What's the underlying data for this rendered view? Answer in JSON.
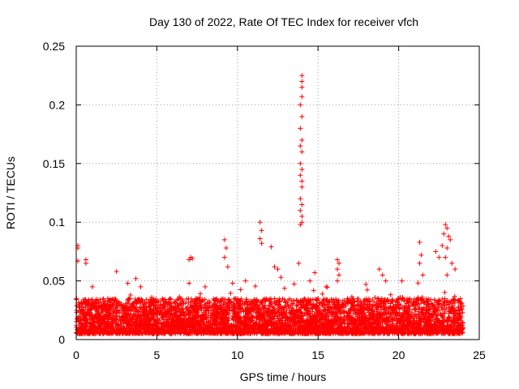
{
  "chart_data": {
    "type": "scatter",
    "title": "Day 130 of 2022, Rate Of TEC Index for receiver vfch",
    "xlabel": "GPS time / hours",
    "ylabel": "ROTI / TECUs",
    "xlim": [
      0,
      25
    ],
    "ylim": [
      0,
      0.25
    ],
    "grid": true,
    "marker": "+",
    "colors": {
      "marker": "#ff0000",
      "grid": "#a0a0a0",
      "axis": "#000000"
    },
    "x_ticks": [
      {
        "value": 0,
        "label": "0"
      },
      {
        "value": 5,
        "label": "5"
      },
      {
        "value": 10,
        "label": "10"
      },
      {
        "value": 15,
        "label": "15"
      },
      {
        "value": 20,
        "label": "20"
      },
      {
        "value": 25,
        "label": "25"
      }
    ],
    "y_ticks": [
      {
        "value": 0,
        "label": "0"
      },
      {
        "value": 0.05,
        "label": "0.05"
      },
      {
        "value": 0.1,
        "label": "0.1"
      },
      {
        "value": 0.15,
        "label": "0.15"
      },
      {
        "value": 0.2,
        "label": "0.2"
      },
      {
        "value": 0.25,
        "label": "0.25"
      }
    ],
    "data_range": {
      "x": [
        0,
        24
      ],
      "typical_y": [
        0.005,
        0.035
      ]
    },
    "series": [
      {
        "name": "ROTI",
        "description": "dense band of samples over 0-24 h; notable excursions listed as points",
        "points": [
          [
            0.1,
            0.08
          ],
          [
            0.1,
            0.078
          ],
          [
            0.1,
            0.067
          ],
          [
            0.6,
            0.068
          ],
          [
            0.6,
            0.065
          ],
          [
            1.0,
            0.045
          ],
          [
            2.5,
            0.058
          ],
          [
            3.2,
            0.048
          ],
          [
            3.7,
            0.052
          ],
          [
            4.0,
            0.045
          ],
          [
            7.0,
            0.068
          ],
          [
            7.1,
            0.07
          ],
          [
            7.2,
            0.069
          ],
          [
            7.0,
            0.048
          ],
          [
            8.0,
            0.045
          ],
          [
            9.2,
            0.085
          ],
          [
            9.3,
            0.078
          ],
          [
            9.2,
            0.07
          ],
          [
            9.4,
            0.062
          ],
          [
            9.7,
            0.048
          ],
          [
            10.5,
            0.05
          ],
          [
            11.4,
            0.1
          ],
          [
            11.5,
            0.093
          ],
          [
            11.4,
            0.086
          ],
          [
            11.5,
            0.082
          ],
          [
            12.1,
            0.079
          ],
          [
            12.3,
            0.062
          ],
          [
            12.5,
            0.06
          ],
          [
            12.7,
            0.053
          ],
          [
            13.8,
            0.065
          ],
          [
            14.0,
            0.225
          ],
          [
            14.0,
            0.22
          ],
          [
            14.0,
            0.215
          ],
          [
            14.0,
            0.207
          ],
          [
            13.9,
            0.2
          ],
          [
            14.0,
            0.19
          ],
          [
            13.9,
            0.18
          ],
          [
            14.0,
            0.17
          ],
          [
            13.9,
            0.165
          ],
          [
            14.0,
            0.16
          ],
          [
            13.9,
            0.15
          ],
          [
            14.0,
            0.145
          ],
          [
            13.9,
            0.14
          ],
          [
            14.0,
            0.135
          ],
          [
            14.0,
            0.13
          ],
          [
            13.9,
            0.12
          ],
          [
            14.0,
            0.115
          ],
          [
            13.9,
            0.11
          ],
          [
            14.0,
            0.105
          ],
          [
            14.0,
            0.1
          ],
          [
            13.9,
            0.098
          ],
          [
            14.5,
            0.05
          ],
          [
            14.8,
            0.057
          ],
          [
            15.5,
            0.045
          ],
          [
            16.2,
            0.068
          ],
          [
            16.3,
            0.065
          ],
          [
            16.2,
            0.06
          ],
          [
            16.3,
            0.055
          ],
          [
            16.2,
            0.05
          ],
          [
            18.8,
            0.06
          ],
          [
            19.0,
            0.055
          ],
          [
            19.2,
            0.05
          ],
          [
            20.2,
            0.05
          ],
          [
            21.3,
            0.083
          ],
          [
            21.4,
            0.072
          ],
          [
            21.3,
            0.065
          ],
          [
            21.5,
            0.055
          ],
          [
            22.3,
            0.075
          ],
          [
            22.5,
            0.07
          ],
          [
            22.7,
            0.08
          ],
          [
            22.9,
            0.098
          ],
          [
            23.0,
            0.095
          ],
          [
            22.8,
            0.09
          ],
          [
            23.1,
            0.088
          ],
          [
            23.2,
            0.085
          ],
          [
            23.0,
            0.078
          ],
          [
            22.9,
            0.07
          ],
          [
            23.3,
            0.065
          ],
          [
            23.5,
            0.06
          ],
          [
            23.0,
            0.055
          ]
        ]
      }
    ]
  }
}
